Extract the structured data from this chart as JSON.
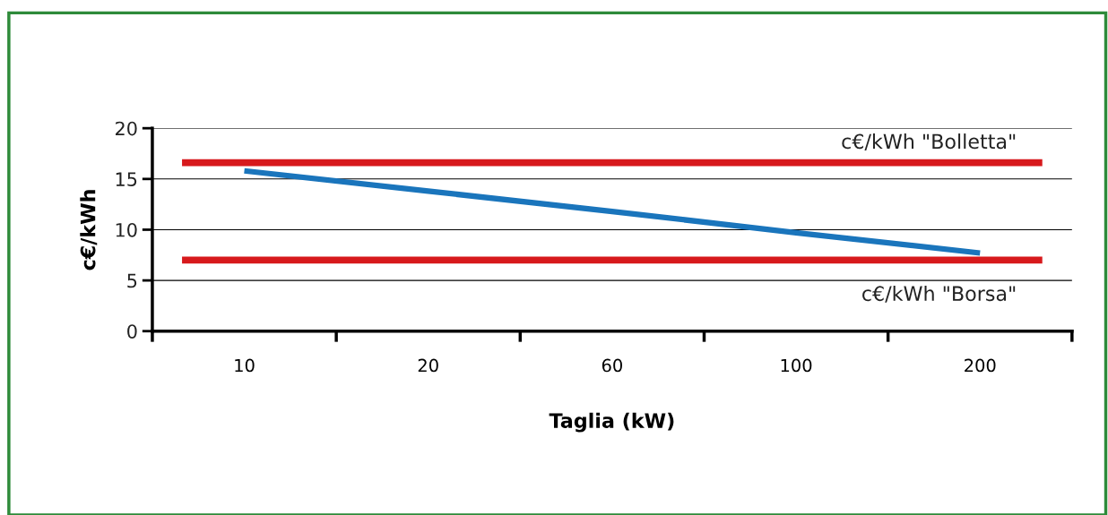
{
  "chart_data": {
    "type": "line",
    "xlabel": "Taglia (kW)",
    "ylabel": "c€/kWh",
    "categories": [
      "10",
      "20",
      "60",
      "100",
      "200"
    ],
    "series": [
      {
        "color": "#1a75bc",
        "values": [
          15.8,
          13.8,
          11.8,
          9.7,
          7.7
        ]
      }
    ],
    "ylim": [
      0,
      20
    ],
    "yticks": [
      0,
      5,
      10,
      15,
      20
    ],
    "grid": "y",
    "marker": "none",
    "line_style": "solid",
    "ref_lines": [
      {
        "axis": "y",
        "value": 16.6,
        "label": "c€/kWh \"Bolletta\"",
        "color": "#d7191c"
      },
      {
        "axis": "y",
        "value": 7.0,
        "label": "c€/kWh \"Borsa\"",
        "color": "#d7191c"
      }
    ]
  }
}
